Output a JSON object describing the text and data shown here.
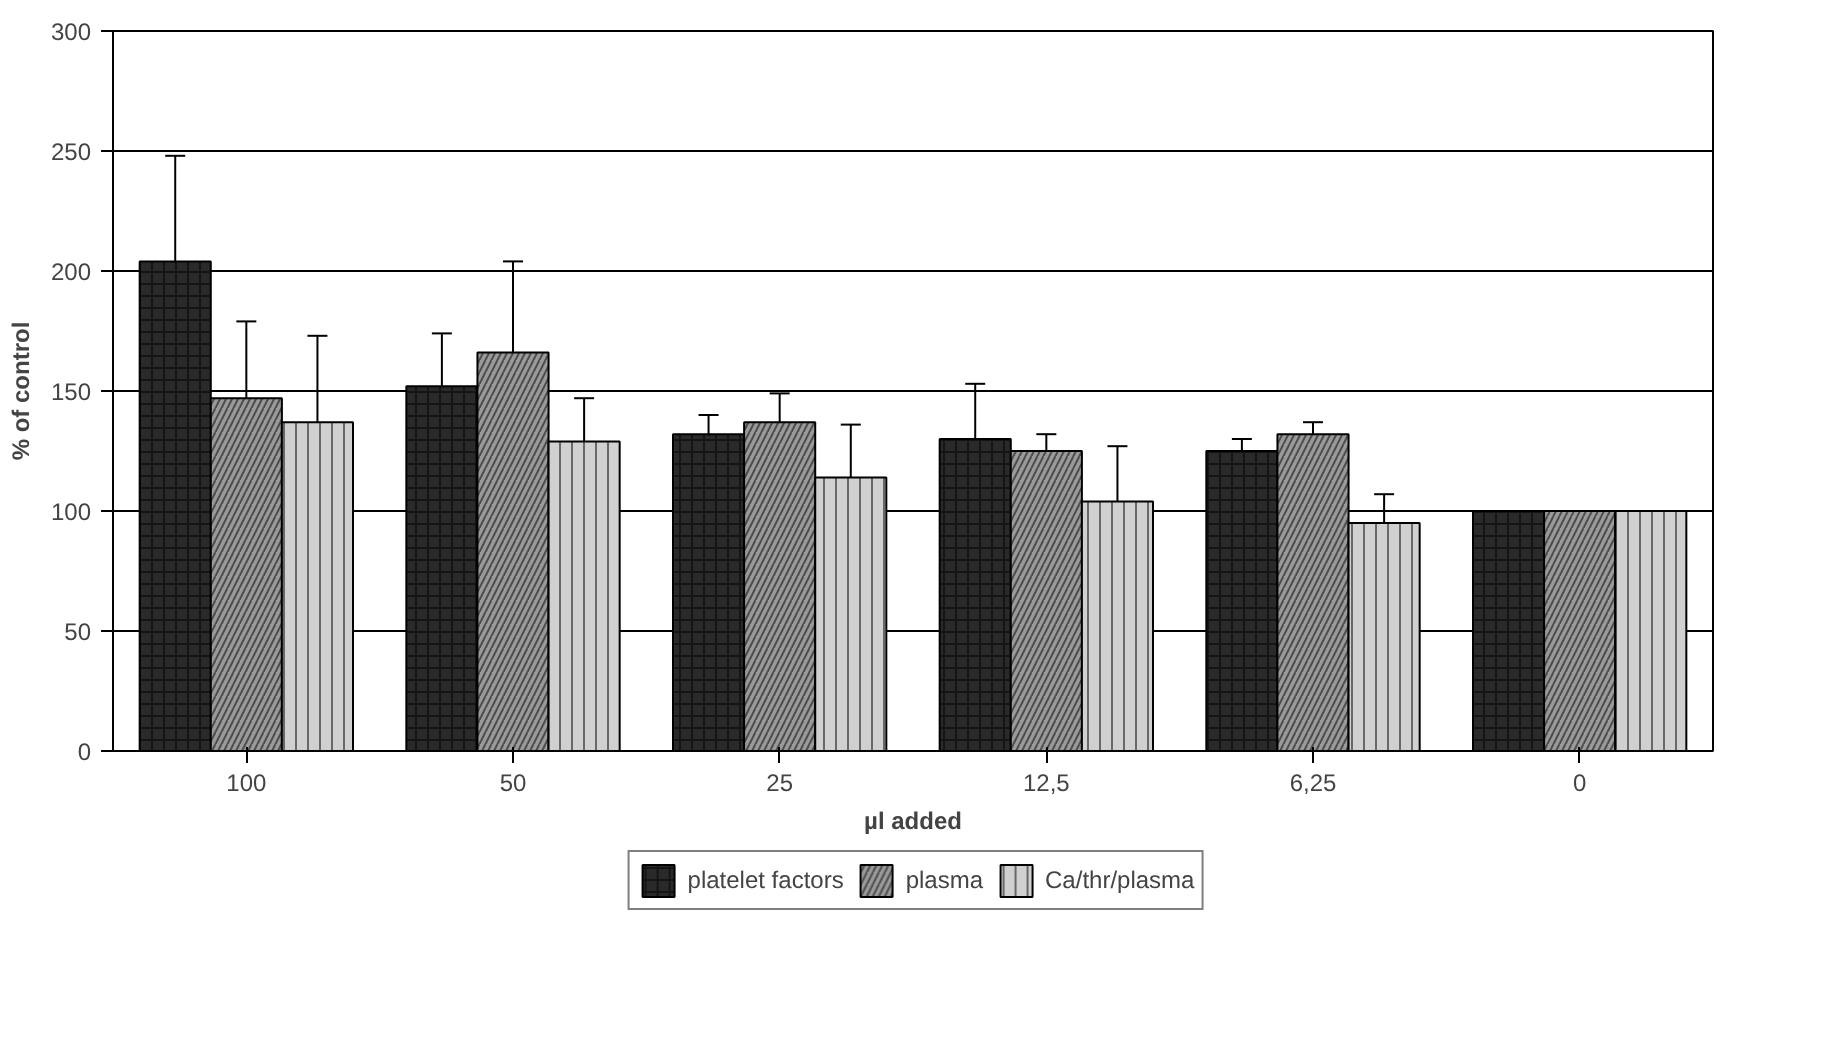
{
  "chart_data": {
    "type": "bar",
    "xlabel": "µl added",
    "ylabel": "% of control",
    "categories": [
      "100",
      "50",
      "25",
      "12,5",
      "6,25",
      "0"
    ],
    "ylim": [
      0,
      300
    ],
    "yticks": [
      0,
      50,
      100,
      150,
      200,
      250,
      300
    ],
    "grid": "y",
    "legend": "bottom",
    "series": [
      {
        "name": "platelet factors",
        "color": "#2a2a2a",
        "values": [
          204,
          152,
          132,
          130,
          125,
          100
        ],
        "errors": [
          44,
          22,
          8,
          23,
          5,
          null
        ]
      },
      {
        "name": "plasma",
        "color": "#9a9a9a",
        "values": [
          147,
          166,
          137,
          125,
          132,
          100
        ],
        "errors": [
          32,
          38,
          12,
          7,
          5,
          null
        ]
      },
      {
        "name": "Ca/thr/plasma",
        "color": "#d0d0d0",
        "values": [
          137,
          129,
          114,
          104,
          95,
          100
        ],
        "errors": [
          36,
          18,
          22,
          23,
          12,
          null
        ]
      }
    ]
  }
}
